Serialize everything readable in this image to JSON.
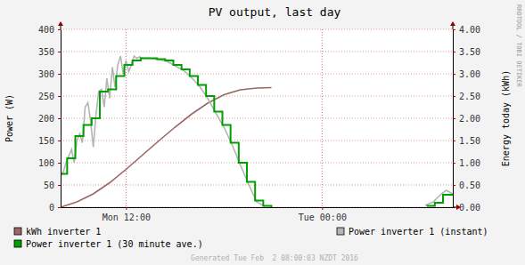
{
  "chart_data": {
    "type": "line",
    "title": "PV output, last day",
    "y_label": "Power (W)",
    "y2_label": "Energy today (kWh)",
    "watermark": "RRDTOOL / TOBI OETIKER",
    "footer": "Generated Tue Feb  2 08:00:03 NZDT 2016",
    "xlim": [
      8,
      32
    ],
    "xticks": [
      {
        "value": 12,
        "label": "Mon 12:00"
      },
      {
        "value": 24,
        "label": "Tue 00:00"
      }
    ],
    "ylim": [
      0,
      400
    ],
    "yticks": [
      0,
      50,
      100,
      150,
      200,
      250,
      300,
      350,
      400
    ],
    "y2lim": [
      0,
      4
    ],
    "y2ticks": [
      {
        "value": 0,
        "label": "0.00"
      },
      {
        "value": 0.5,
        "label": "0.50"
      },
      {
        "value": 1,
        "label": "1.00"
      },
      {
        "value": 1.5,
        "label": "1.50"
      },
      {
        "value": 2,
        "label": "2.00"
      },
      {
        "value": 2.5,
        "label": "2.50"
      },
      {
        "value": 3,
        "label": "3.00"
      },
      {
        "value": 3.5,
        "label": "3.50"
      },
      {
        "value": 4,
        "label": "4.00"
      }
    ],
    "grid": true,
    "legend": "bottom",
    "series": [
      {
        "name": "kWh inverter 1",
        "color": "#9c6666",
        "axis": "y2",
        "line_style": "solid",
        "x": [
          8,
          9,
          10,
          11,
          12,
          13,
          14,
          15,
          16,
          17,
          18,
          19,
          20,
          20.9
        ],
        "values": [
          0,
          0.12,
          0.3,
          0.55,
          0.85,
          1.17,
          1.49,
          1.8,
          2.09,
          2.34,
          2.53,
          2.64,
          2.68,
          2.69
        ]
      },
      {
        "name": "Power inverter 1 (instant)",
        "color": "#b4b4b4",
        "line_style": "solid",
        "x": [
          8,
          8.17,
          8.33,
          8.5,
          8.67,
          8.83,
          9,
          9.17,
          9.33,
          9.5,
          9.67,
          9.83,
          10,
          10.17,
          10.33,
          10.5,
          10.67,
          10.83,
          11,
          11.17,
          11.33,
          11.5,
          11.67,
          11.83,
          12,
          12.17,
          12.33,
          12.5,
          12.67,
          12.83,
          13,
          13.5,
          14,
          14.5,
          15,
          15.5,
          16,
          16.5,
          17,
          17.5,
          18,
          18.5,
          19,
          19.5,
          20,
          20.5,
          21,
          30.3,
          30.8,
          31.3,
          31.6,
          32
        ],
        "values": [
          70,
          80,
          100,
          115,
          130,
          100,
          150,
          165,
          145,
          225,
          235,
          195,
          135,
          210,
          260,
          265,
          225,
          290,
          245,
          315,
          270,
          320,
          340,
          300,
          330,
          305,
          320,
          340,
          335,
          338,
          335,
          335,
          332,
          328,
          318,
          308,
          292,
          272,
          245,
          212,
          180,
          140,
          95,
          52,
          12,
          2,
          null,
          4,
          12,
          30,
          38,
          30
        ]
      },
      {
        "name": "Power inverter 1 (30 minute ave.)",
        "color": "#00a000",
        "line_style": "step",
        "x": [
          8,
          8.4,
          8.9,
          9.4,
          9.9,
          10.4,
          10.9,
          11.4,
          11.9,
          12.4,
          12.9,
          13.4,
          13.9,
          14.4,
          14.9,
          15.4,
          15.9,
          16.4,
          16.9,
          17.4,
          17.9,
          18.4,
          18.9,
          19.4,
          19.9,
          20.4,
          20.9,
          21,
          30.4,
          30.9,
          31.4,
          32
        ],
        "values": [
          75,
          110,
          160,
          185,
          200,
          260,
          265,
          295,
          320,
          330,
          335,
          335,
          333,
          330,
          320,
          310,
          295,
          275,
          250,
          215,
          185,
          145,
          100,
          57,
          15,
          3,
          0,
          null,
          3,
          10,
          28,
          28
        ]
      }
    ]
  }
}
